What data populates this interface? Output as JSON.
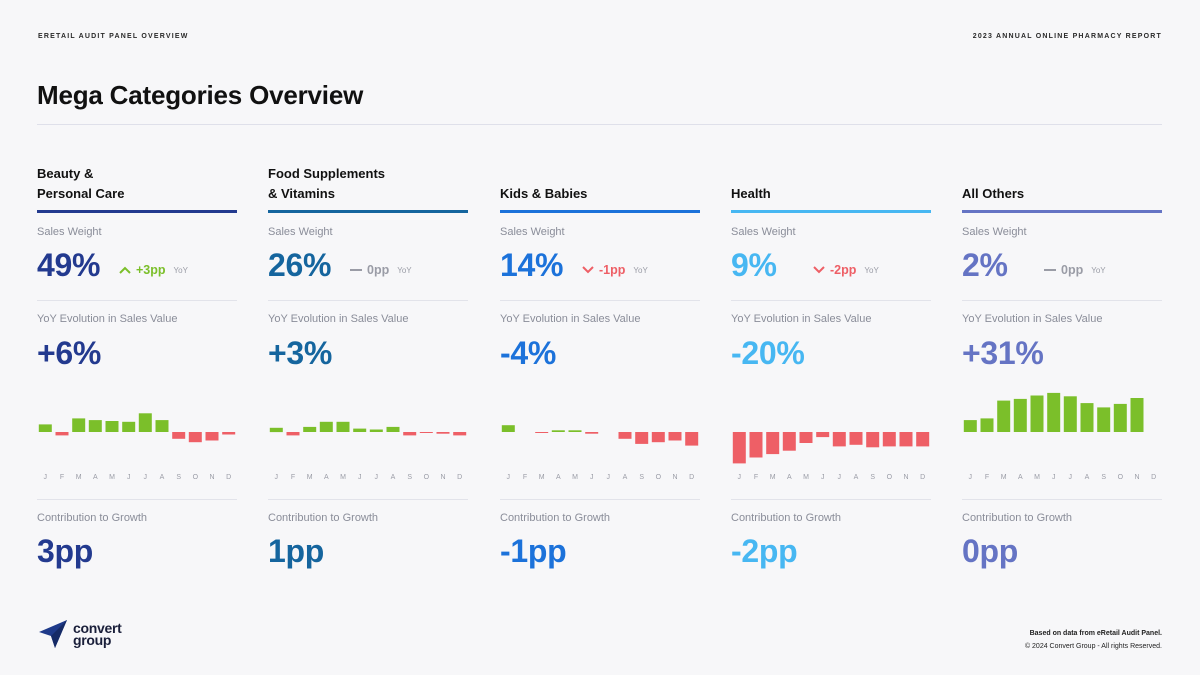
{
  "header": {
    "left": "ERETAIL AUDIT PANEL OVERVIEW",
    "right": "2023 ANNUAL ONLINE PHARMACY REPORT"
  },
  "title": "Mega Categories Overview",
  "labels": {
    "sales_weight": "Sales Weight",
    "yoy_evolution": "YoY Evolution in Sales Value",
    "contribution": "Contribution to Growth",
    "yoy": "YoY"
  },
  "colors": {
    "positive": "#7bbf2a",
    "negative": "#ee5f66",
    "neutral": "#9a9ca6"
  },
  "categories": [
    {
      "name_line1": "Beauty &",
      "name_line2": "Personal Care",
      "color": "#233a8f",
      "sales_weight": "49%",
      "delta": "+3pp",
      "delta_dir": "up",
      "yoy_evolution": "+6%",
      "contribution": "3pp"
    },
    {
      "name_line1": "Food Supplements",
      "name_line2": "& Vitamins",
      "color": "#15659e",
      "sales_weight": "26%",
      "delta": "0pp",
      "delta_dir": "flat",
      "yoy_evolution": "+3%",
      "contribution": "1pp"
    },
    {
      "name_line1": "",
      "name_line2": "Kids & Babies",
      "color": "#1c72da",
      "sales_weight": "14%",
      "delta": "-1pp",
      "delta_dir": "down",
      "yoy_evolution": "-4%",
      "contribution": "-1pp"
    },
    {
      "name_line1": "",
      "name_line2": "Health",
      "color": "#47b7f2",
      "sales_weight": "9%",
      "delta": "-2pp",
      "delta_dir": "down",
      "yoy_evolution": "-20%",
      "contribution": "-2pp"
    },
    {
      "name_line1": "",
      "name_line2": "All Others",
      "color": "#6574c4",
      "sales_weight": "2%",
      "delta": "0pp",
      "delta_dir": "flat",
      "yoy_evolution": "+31%",
      "contribution": "0pp"
    }
  ],
  "chart_data": [
    {
      "type": "bar",
      "categories": [
        "J",
        "F",
        "M",
        "A",
        "M",
        "J",
        "J",
        "A",
        "S",
        "O",
        "N",
        "D"
      ],
      "values": [
        9,
        -4,
        16,
        14,
        13,
        12,
        22,
        14,
        -8,
        -12,
        -10,
        -3
      ],
      "title": "",
      "xlabel": "",
      "ylabel": "",
      "ylim": [
        -40,
        45
      ]
    },
    {
      "type": "bar",
      "categories": [
        "J",
        "F",
        "M",
        "A",
        "M",
        "J",
        "J",
        "A",
        "S",
        "O",
        "N",
        "D"
      ],
      "values": [
        5,
        -4,
        6,
        12,
        12,
        4,
        3,
        6,
        -4,
        -1,
        -2,
        -4
      ],
      "title": "",
      "xlabel": "",
      "ylabel": "",
      "ylim": [
        -40,
        45
      ]
    },
    {
      "type": "bar",
      "categories": [
        "J",
        "F",
        "M",
        "A",
        "M",
        "J",
        "J",
        "A",
        "S",
        "O",
        "N",
        "D"
      ],
      "values": [
        8,
        0,
        -1,
        2,
        2,
        -2,
        0,
        -8,
        -14,
        -12,
        -10,
        -16
      ],
      "title": "",
      "xlabel": "",
      "ylabel": "",
      "ylim": [
        -40,
        45
      ]
    },
    {
      "type": "bar",
      "categories": [
        "J",
        "F",
        "M",
        "A",
        "M",
        "J",
        "J",
        "A",
        "S",
        "O",
        "N",
        "D"
      ],
      "values": [
        -37,
        -30,
        -26,
        -22,
        -13,
        -6,
        -17,
        -15,
        -18,
        -17,
        -17,
        -17
      ],
      "title": "",
      "xlabel": "",
      "ylabel": "",
      "ylim": [
        -40,
        45
      ]
    },
    {
      "type": "bar",
      "categories": [
        "J",
        "F",
        "M",
        "A",
        "M",
        "J",
        "J",
        "A",
        "S",
        "O",
        "N",
        "D"
      ],
      "values": [
        14,
        16,
        37,
        39,
        43,
        46,
        42,
        34,
        29,
        33,
        40,
        0
      ],
      "title": "",
      "xlabel": "",
      "ylabel": "",
      "ylim": [
        -40,
        50
      ]
    }
  ],
  "footer": {
    "source": "Based on data from eRetail Audit Panel.",
    "copyright": "© 2024 Convert Group - All rights Reserved.",
    "logo_line1": "convert",
    "logo_line2": "group"
  }
}
